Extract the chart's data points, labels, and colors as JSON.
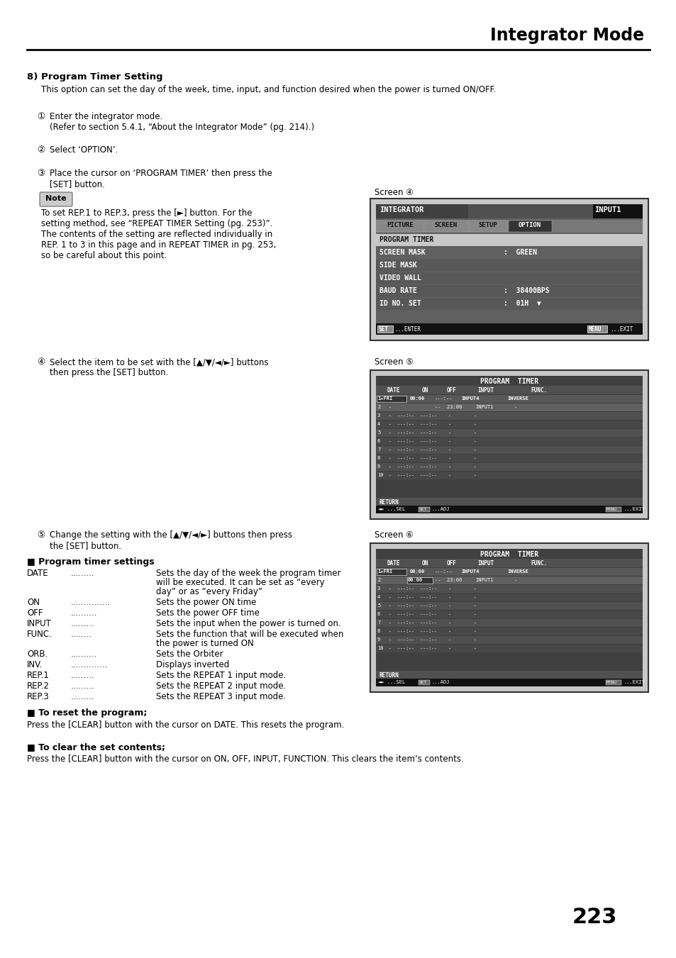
{
  "title": "Integrator Mode",
  "page_number": "223",
  "section_title": "8) Program Timer Setting",
  "section_desc": "This option can set the day of the week, time, input, and function desired when the power is turned ON/OFF.",
  "note_text": "To set REP.1 to REP.3, press the [►] button. For the\nsetting method, see “REPEAT TIMER Setting (pg. 253)”.\nThe contents of the setting are reflected individually in\nREP. 1 to 3 in this page and in REPEAT TIMER in pg. 253,\nso be careful about this point.",
  "screen3_label": "Screen ④",
  "screen4_label": "Screen ⑤",
  "screen5_label": "Screen ⑥",
  "program_timer_section_title": "■ Program timer settings",
  "program_timer_items": [
    [
      "DATE",
      ".........",
      "Sets the day of the week the program timer\nwill be executed. It can be set as “every\nday” or as “every Friday”"
    ],
    [
      "ON",
      "...............",
      "Sets the power ON time"
    ],
    [
      "OFF",
      "..........",
      "Sets the power OFF time"
    ],
    [
      "INPUT",
      ".........",
      "Sets the input when the power is turned on."
    ],
    [
      "FUNC.",
      "........",
      "Sets the function that will be executed when\nthe power is turned ON"
    ],
    [
      "ORB.",
      "..........",
      "Sets the Orbiter"
    ],
    [
      "INV.",
      "..............",
      "Displays inverted"
    ],
    [
      "REP.1",
      ".........",
      "Sets the REPEAT 1 input mode."
    ],
    [
      "REP.2",
      ".........",
      "Sets the REPEAT 2 input mode."
    ],
    [
      "REP.3",
      ".........",
      "Sets the REPEAT 3 input mode."
    ]
  ],
  "reset_section": "■ To reset the program;",
  "reset_text": "Press the [CLEAR] button with the cursor on DATE. This resets the program.",
  "clear_section": "■ To clear the set contents;",
  "clear_text": "Press the [CLEAR] button with the cursor on ON, OFF, INPUT, FUNCTION. This clears the item’s contents.",
  "bg_color": "#ffffff",
  "screen_bg": "#c8c8c8",
  "screen_inner_bg": "#383838",
  "screen_row_light": "#787878",
  "screen_row_dark": "#484848",
  "screen_row_sel": "#555555",
  "screen_black": "#111111",
  "screen_header_bg": "#505050",
  "screen_tab_bg": "#888888",
  "screen_tab_sel": "#383838"
}
